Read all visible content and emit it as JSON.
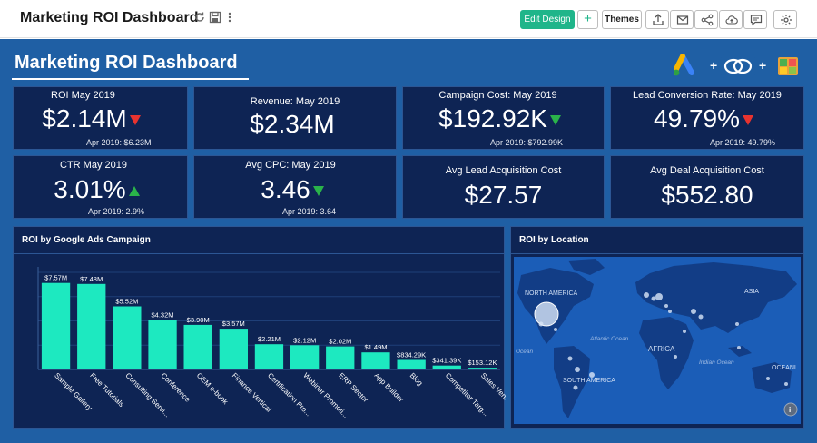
{
  "toolbar": {
    "title": "Marketing ROI Dashboard",
    "edit_design_label": "Edit Design",
    "add_label": "+",
    "themes_label": "Themes"
  },
  "dashboard": {
    "title": "Marketing ROI Dashboard",
    "logo_plus_1": "+",
    "logo_plus_2": "+"
  },
  "kpis": [
    {
      "label": "ROI May 2019",
      "value": "$2.14M",
      "trend": "down",
      "sub": "Apr 2019: $6.23M"
    },
    {
      "label": "Revenue: May 2019",
      "value": "$2.34M",
      "trend": "",
      "sub": ""
    },
    {
      "label": "Campaign Cost: May 2019",
      "value": "$192.92K",
      "trend": "down-green",
      "sub": "Apr 2019: $792.99K"
    },
    {
      "label": "Lead Conversion Rate: May 2019",
      "value": "49.79%",
      "trend": "down",
      "sub": "Apr 2019: 49.79%"
    },
    {
      "label": "CTR May 2019",
      "value": "3.01%",
      "trend": "up",
      "sub": "Apr 2019: 2.9%"
    },
    {
      "label": "Avg CPC: May 2019",
      "value": "3.46",
      "trend": "down-green",
      "sub": "Apr 2019: 3.64"
    },
    {
      "label": "Avg Lead Acquisition Cost",
      "value": "$27.57",
      "trend": "",
      "sub": ""
    },
    {
      "label": "Avg Deal Acquisition Cost",
      "value": "$552.80",
      "trend": "",
      "sub": ""
    }
  ],
  "colors": {
    "canvas_bg": "#1f5fa4",
    "card_bg": "#0e2454",
    "bar": "#1de9c0",
    "accent_green": "#1fb58a",
    "down_red": "#e8332f",
    "up_green": "#2ab34a"
  },
  "chart_data": {
    "type": "bar",
    "title": "ROI by Google Ads Campaign",
    "categories": [
      "Sample Gallery",
      "Free Tutorials",
      "Consulting Servi...",
      "Conference",
      "OEM e-book",
      "Finance Vertical",
      "Certification Pro...",
      "Webinar Promoti...",
      "ERP Sector",
      "App Builder",
      "Blog",
      "Competitor Targ...",
      "Sales Vertical"
    ],
    "values": [
      7.57,
      7.48,
      5.52,
      4.32,
      3.9,
      3.57,
      2.21,
      2.12,
      2.02,
      1.49,
      0.83429,
      0.34139,
      0.15312
    ],
    "data_labels": [
      "$7.57M",
      "$7.48M",
      "$5.52M",
      "$4.32M",
      "$3.90M",
      "$3.57M",
      "$2.21M",
      "$2.12M",
      "$2.02M",
      "$1.49M",
      "$834.29K",
      "$341.39K",
      "$153.12K"
    ],
    "unit": "$M",
    "ylim": [
      0,
      8.5
    ],
    "xlabel": "",
    "ylabel": "",
    "grid": true
  },
  "map": {
    "title": "ROI by Location",
    "labels": {
      "north_america": "NORTH AMERICA",
      "south_america": "SOUTH AMERICA",
      "africa": "AFRICA",
      "asia": "ASIA",
      "oceania": "OCEANI",
      "atlantic": "Atlantic Ocean",
      "indian": "Indian Ocean",
      "pacific": "Ocean"
    }
  }
}
